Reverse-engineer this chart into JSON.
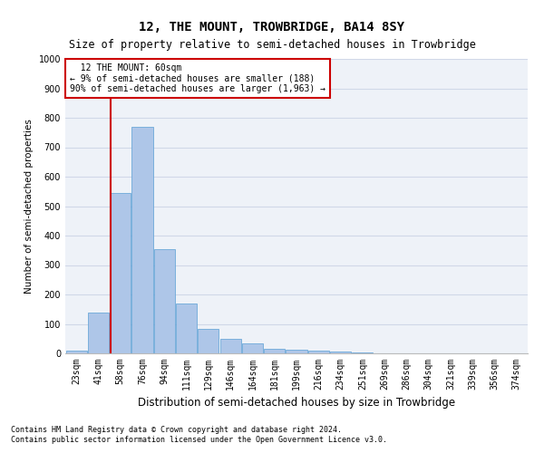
{
  "title": "12, THE MOUNT, TROWBRIDGE, BA14 8SY",
  "subtitle": "Size of property relative to semi-detached houses in Trowbridge",
  "xlabel": "Distribution of semi-detached houses by size in Trowbridge",
  "ylabel": "Number of semi-detached properties",
  "categories": [
    "23sqm",
    "41sqm",
    "58sqm",
    "76sqm",
    "94sqm",
    "111sqm",
    "129sqm",
    "146sqm",
    "164sqm",
    "181sqm",
    "199sqm",
    "216sqm",
    "234sqm",
    "251sqm",
    "269sqm",
    "286sqm",
    "304sqm",
    "321sqm",
    "339sqm",
    "356sqm",
    "374sqm"
  ],
  "values": [
    8,
    140,
    545,
    770,
    355,
    170,
    82,
    50,
    33,
    15,
    12,
    8,
    5,
    2,
    1,
    1,
    0,
    0,
    0,
    0,
    0
  ],
  "bar_color": "#aec6e8",
  "bar_edge_color": "#5a9fd4",
  "grid_color": "#d0d8e8",
  "background_color": "#eef2f8",
  "vline_x": 1.55,
  "vline_color": "#cc0000",
  "annotation_text": "  12 THE MOUNT: 60sqm\n← 9% of semi-detached houses are smaller (188)\n90% of semi-detached houses are larger (1,963) →",
  "annotation_box_color": "#ffffff",
  "annotation_box_edge": "#cc0000",
  "ylim": [
    0,
    1000
  ],
  "yticks": [
    0,
    100,
    200,
    300,
    400,
    500,
    600,
    700,
    800,
    900,
    1000
  ],
  "footnote1": "Contains HM Land Registry data © Crown copyright and database right 2024.",
  "footnote2": "Contains public sector information licensed under the Open Government Licence v3.0.",
  "title_fontsize": 10,
  "subtitle_fontsize": 8.5,
  "tick_fontsize": 7,
  "ylabel_fontsize": 7.5,
  "xlabel_fontsize": 8.5
}
